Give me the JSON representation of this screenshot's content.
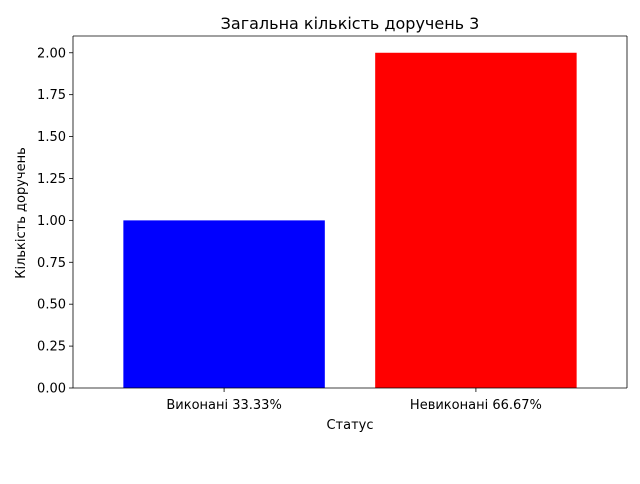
{
  "chart_data": {
    "type": "bar",
    "title": "Загальна кількість доручень 3",
    "xlabel": "Статус",
    "ylabel": "Кількість доручень",
    "categories": [
      "Виконані 33.33%",
      "Невиконані 66.67%"
    ],
    "values": [
      1,
      2
    ],
    "colors": [
      "#0000ff",
      "#ff0000"
    ],
    "ylim": [
      0,
      2.1
    ],
    "yticks": [
      "0.00",
      "0.25",
      "0.50",
      "0.75",
      "1.00",
      "1.25",
      "1.50",
      "1.75",
      "2.00"
    ],
    "grid": false
  }
}
